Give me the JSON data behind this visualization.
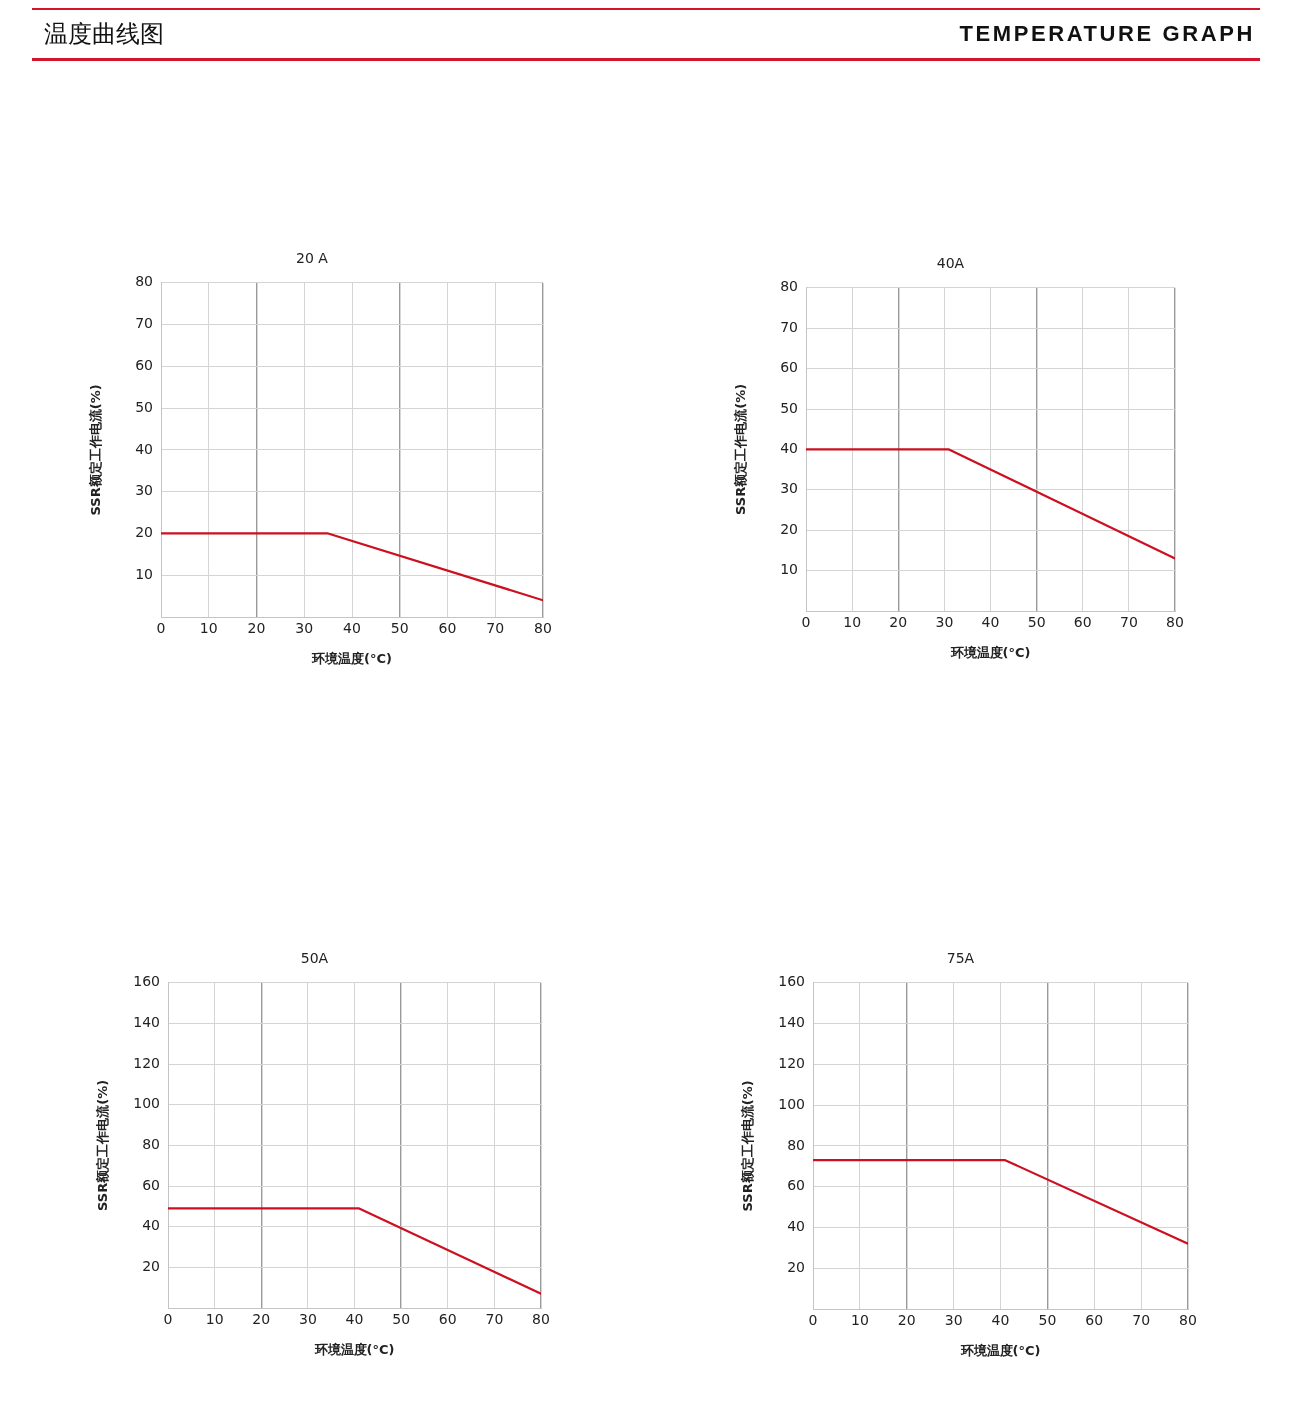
{
  "chart_data": [
    {
      "type": "other",
      "title": "温度曲线图",
      "subtitle": "TEMPERATURE GRAPH"
    },
    {
      "type": "line",
      "title": "20 A",
      "xlabel": "环境温度(°C)",
      "ylabel": "SSR额定工作电流(%)",
      "x": [
        0,
        35,
        80
      ],
      "values": [
        20,
        20,
        4
      ],
      "color": "#cc1020",
      "xlim": [
        0,
        80
      ],
      "xticks": [
        0,
        10,
        20,
        30,
        40,
        50,
        60,
        70,
        80
      ],
      "ylim": [
        0,
        80
      ],
      "yticks": [
        10,
        20,
        30,
        40,
        50,
        60,
        70,
        80
      ],
      "grid": true
    },
    {
      "type": "line",
      "title": "40A",
      "xlabel": "环境温度(°C)",
      "ylabel": "SSR额定工作电流(%)",
      "x": [
        0,
        31,
        80
      ],
      "values": [
        40,
        40,
        13
      ],
      "color": "#cc1020",
      "xlim": [
        0,
        80
      ],
      "xticks": [
        0,
        10,
        20,
        30,
        40,
        50,
        60,
        70,
        80
      ],
      "ylim": [
        0,
        80
      ],
      "yticks": [
        10,
        20,
        30,
        40,
        50,
        60,
        70,
        80
      ],
      "grid": true
    },
    {
      "type": "line",
      "title": "50A",
      "xlabel": "环境温度(°C)",
      "ylabel": "SSR额定工作电流(%)",
      "x": [
        0,
        41,
        80
      ],
      "values": [
        49,
        49,
        7
      ],
      "color": "#cc1020",
      "xlim": [
        0,
        80
      ],
      "xticks": [
        0,
        10,
        20,
        30,
        40,
        50,
        60,
        70,
        80
      ],
      "ylim": [
        0,
        160
      ],
      "yticks": [
        20,
        40,
        60,
        80,
        100,
        120,
        140,
        160
      ],
      "grid": true
    },
    {
      "type": "line",
      "title": "75A",
      "xlabel": "环境温度(°C)",
      "ylabel": "SSR额定工作电流(%)",
      "x": [
        0,
        41,
        80
      ],
      "values": [
        73,
        73,
        32
      ],
      "color": "#cc1020",
      "xlim": [
        0,
        80
      ],
      "xticks": [
        0,
        10,
        20,
        30,
        40,
        50,
        60,
        70,
        80
      ],
      "ylim": [
        0,
        160
      ],
      "yticks": [
        20,
        40,
        60,
        80,
        100,
        120,
        140,
        160
      ],
      "grid": true
    }
  ]
}
